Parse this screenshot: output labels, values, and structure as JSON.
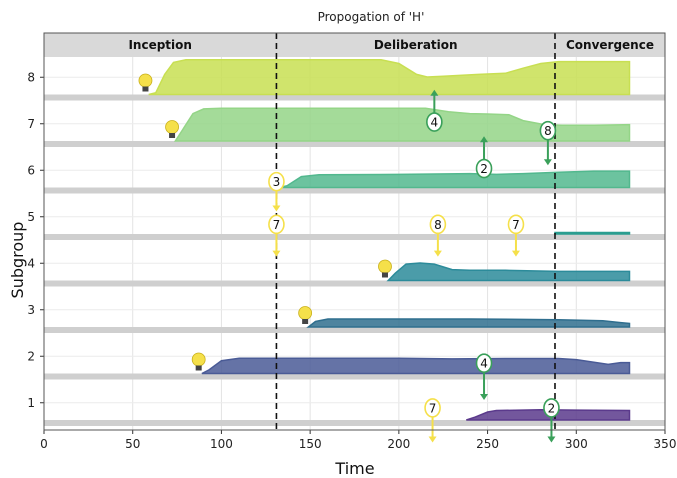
{
  "chart_data": {
    "type": "area",
    "title": "Propogation of 'H'",
    "xlabel": "Time",
    "ylabel": "Subgroup",
    "xlim": [
      0,
      350
    ],
    "x_ticks": [
      "0",
      "50",
      "100",
      "150",
      "200",
      "250",
      "300",
      "350"
    ],
    "y_ticks": [
      "1",
      "2",
      "3",
      "4",
      "5",
      "6",
      "7",
      "8"
    ],
    "phases": [
      {
        "label": "Inception",
        "start": 0,
        "end": 131
      },
      {
        "label": "Deliberation",
        "start": 131,
        "end": 288
      },
      {
        "label": "Convergence",
        "start": 288,
        "end": 350
      }
    ],
    "phase_boundaries": [
      131,
      288
    ],
    "series": [
      {
        "subgroup": 8,
        "color": "#c8df52",
        "points": [
          [
            59,
            0
          ],
          [
            63,
            0.05
          ],
          [
            68,
            0.55
          ],
          [
            73,
            0.88
          ],
          [
            80,
            0.95
          ],
          [
            190,
            0.95
          ],
          [
            200,
            0.85
          ],
          [
            210,
            0.55
          ],
          [
            216,
            0.48
          ],
          [
            225,
            0.5
          ],
          [
            245,
            0.55
          ],
          [
            260,
            0.58
          ],
          [
            270,
            0.72
          ],
          [
            280,
            0.85
          ],
          [
            290,
            0.9
          ],
          [
            330,
            0.9
          ]
        ]
      },
      {
        "subgroup": 7,
        "color": "#94d587",
        "points": [
          [
            74,
            0
          ],
          [
            78,
            0.3
          ],
          [
            84,
            0.75
          ],
          [
            90,
            0.88
          ],
          [
            100,
            0.9
          ],
          [
            215,
            0.9
          ],
          [
            228,
            0.8
          ],
          [
            240,
            0.75
          ],
          [
            250,
            0.74
          ],
          [
            262,
            0.72
          ],
          [
            270,
            0.56
          ],
          [
            282,
            0.45
          ],
          [
            292,
            0.43
          ],
          [
            310,
            0.43
          ],
          [
            330,
            0.45
          ]
        ]
      },
      {
        "subgroup": 6,
        "color": "#52b88e",
        "points": [
          [
            133,
            0
          ],
          [
            137,
            0.05
          ],
          [
            145,
            0.3
          ],
          [
            155,
            0.35
          ],
          [
            200,
            0.36
          ],
          [
            240,
            0.38
          ],
          [
            255,
            0.36
          ],
          [
            270,
            0.38
          ],
          [
            290,
            0.42
          ],
          [
            310,
            0.45
          ],
          [
            330,
            0.45
          ]
        ]
      },
      {
        "subgroup": 5,
        "color": "#2a9d90",
        "points": [
          [
            288,
            0
          ],
          [
            288,
            0.04
          ],
          [
            330,
            0.04
          ],
          [
            330,
            0
          ]
        ]
      },
      {
        "subgroup": 4,
        "color": "#2c8b9a",
        "points": [
          [
            194,
            0
          ],
          [
            198,
            0.2
          ],
          [
            204,
            0.45
          ],
          [
            212,
            0.48
          ],
          [
            220,
            0.45
          ],
          [
            230,
            0.3
          ],
          [
            240,
            0.28
          ],
          [
            260,
            0.28
          ],
          [
            290,
            0.25
          ],
          [
            330,
            0.25
          ]
        ]
      },
      {
        "subgroup": 3,
        "color": "#2f6e8e",
        "points": [
          [
            149,
            0
          ],
          [
            153,
            0.15
          ],
          [
            160,
            0.22
          ],
          [
            170,
            0.22
          ],
          [
            240,
            0.22
          ],
          [
            290,
            0.2
          ],
          [
            315,
            0.17
          ],
          [
            325,
            0.12
          ],
          [
            330,
            0.1
          ]
        ]
      },
      {
        "subgroup": 2,
        "color": "#4a5b96",
        "points": [
          [
            89,
            0
          ],
          [
            93,
            0.1
          ],
          [
            100,
            0.35
          ],
          [
            110,
            0.42
          ],
          [
            200,
            0.42
          ],
          [
            230,
            0.4
          ],
          [
            260,
            0.41
          ],
          [
            290,
            0.41
          ],
          [
            300,
            0.38
          ],
          [
            318,
            0.25
          ],
          [
            325,
            0.3
          ],
          [
            330,
            0.3
          ]
        ]
      },
      {
        "subgroup": 1,
        "color": "#5b3a8c",
        "points": [
          [
            238,
            0
          ],
          [
            243,
            0.08
          ],
          [
            250,
            0.22
          ],
          [
            255,
            0.26
          ],
          [
            280,
            0.28
          ],
          [
            300,
            0.27
          ],
          [
            330,
            0.26
          ]
        ]
      }
    ],
    "origin_markers": [
      {
        "subgroup": 8,
        "x": 60,
        "color": "#f5e04a"
      },
      {
        "subgroup": 7,
        "x": 75,
        "color": "#f5e04a"
      },
      {
        "subgroup": 4,
        "x": 195,
        "color": "#f5e04a"
      },
      {
        "subgroup": 3,
        "x": 150,
        "color": "#f5e04a"
      },
      {
        "subgroup": 2,
        "x": 90,
        "color": "#f5e04a"
      }
    ],
    "transmissions": [
      {
        "label": "3",
        "x": 131,
        "subgroup": 6,
        "pos": 0.83,
        "direction": "down",
        "len": 0.45,
        "color": "#f5e04a"
      },
      {
        "label": "7",
        "x": 131,
        "subgroup": 5,
        "pos": 0.72,
        "direction": "down",
        "len": 0.5,
        "color": "#f5e04a"
      },
      {
        "label": "8",
        "x": 222,
        "subgroup": 5,
        "pos": 0.72,
        "direction": "down",
        "len": 0.5,
        "color": "#f5e04a"
      },
      {
        "label": "7",
        "x": 266,
        "subgroup": 5,
        "pos": 0.72,
        "direction": "down",
        "len": 0.5,
        "color": "#f5e04a"
      },
      {
        "label": "4",
        "x": 220,
        "subgroup": 7,
        "pos": 0.45,
        "direction": "up",
        "len": 0.5,
        "color": "#3aa05a"
      },
      {
        "label": "2",
        "x": 248,
        "subgroup": 6,
        "pos": 0.45,
        "direction": "up",
        "len": 0.5,
        "color": "#3aa05a"
      },
      {
        "label": "8",
        "x": 284,
        "subgroup": 7,
        "pos": 0.7,
        "direction": "down",
        "len": 0.55,
        "color": "#3aa05a"
      },
      {
        "label": "4",
        "x": 248,
        "subgroup": 2,
        "pos": 0.7,
        "direction": "down",
        "len": 0.6,
        "color": "#3aa05a"
      },
      {
        "label": "7",
        "x": 219,
        "subgroup": 1,
        "pos": 0.65,
        "direction": "down",
        "len": 0.55,
        "color": "#f5e04a"
      },
      {
        "label": "2",
        "x": 286,
        "subgroup": 1,
        "pos": 0.65,
        "direction": "down",
        "len": 0.55,
        "color": "#3aa05a"
      }
    ],
    "grid": true
  }
}
